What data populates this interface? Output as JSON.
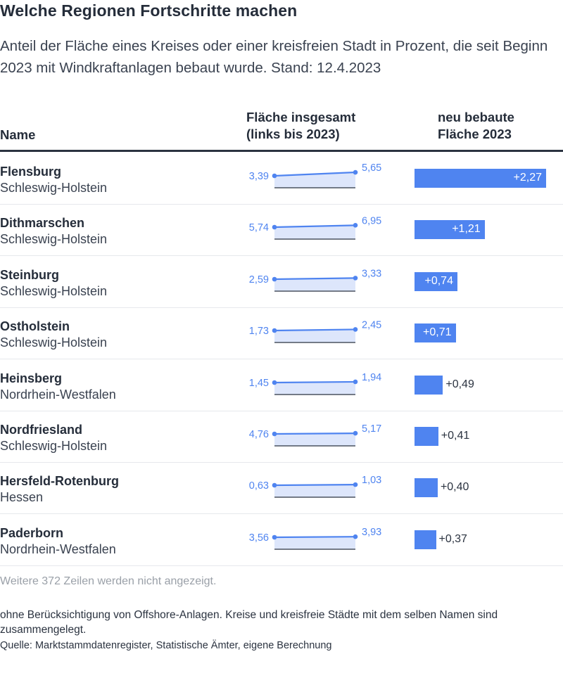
{
  "header": {
    "title": "Welche Regionen Fortschritte machen",
    "subtitle": "Anteil der Fläche eines Kreises oder einer kreisfreien Stadt in Prozent, die seit Beginn 2023 mit Windkraftanlagen bebaut wurde. Stand: 12.4.2023"
  },
  "columns": {
    "name": "Name",
    "total_line1": "Fläche insgesamt",
    "total_line2": "(links bis 2023)",
    "new_line1": "neu bebaute",
    "new_line2": "Fläche 2023"
  },
  "chart_data": {
    "type": "table",
    "columns": [
      "Name",
      "Fläche insgesamt (links bis 2023)",
      "neu bebaute Fläche 2023"
    ],
    "rows": [
      {
        "name": "Flensburg",
        "state": "Schleswig-Holstein",
        "before": 3.39,
        "after": 5.65,
        "new": 2.27,
        "before_label": "3,39",
        "after_label": "5,65",
        "new_label": "+2,27"
      },
      {
        "name": "Dithmarschen",
        "state": "Schleswig-Holstein",
        "before": 5.74,
        "after": 6.95,
        "new": 1.21,
        "before_label": "5,74",
        "after_label": "6,95",
        "new_label": "+1,21"
      },
      {
        "name": "Steinburg",
        "state": "Schleswig-Holstein",
        "before": 2.59,
        "after": 3.33,
        "new": 0.74,
        "before_label": "2,59",
        "after_label": "3,33",
        "new_label": "+0,74"
      },
      {
        "name": "Ostholstein",
        "state": "Schleswig-Holstein",
        "before": 1.73,
        "after": 2.45,
        "new": 0.71,
        "before_label": "1,73",
        "after_label": "2,45",
        "new_label": "+0,71"
      },
      {
        "name": "Heinsberg",
        "state": "Nordrhein-Westfalen",
        "before": 1.45,
        "after": 1.94,
        "new": 0.49,
        "before_label": "1,45",
        "after_label": "1,94",
        "new_label": "+0,49"
      },
      {
        "name": "Nordfriesland",
        "state": "Schleswig-Holstein",
        "before": 4.76,
        "after": 5.17,
        "new": 0.41,
        "before_label": "4,76",
        "after_label": "5,17",
        "new_label": "+0,41"
      },
      {
        "name": "Hersfeld-Rotenburg",
        "state": "Hessen",
        "before": 0.63,
        "after": 1.03,
        "new": 0.4,
        "before_label": "0,63",
        "after_label": "1,03",
        "new_label": "+0,40"
      },
      {
        "name": "Paderborn",
        "state": "Nordrhein-Westfalen",
        "before": 3.56,
        "after": 3.93,
        "new": 0.37,
        "before_label": "3,56",
        "after_label": "3,93",
        "new_label": "+0,37"
      }
    ],
    "colors": {
      "accent": "#4f84f0",
      "area": "#dde6fb",
      "label": "#4f84f0"
    }
  },
  "footer": {
    "more": "Weitere 372 Zeilen werden nicht angezeigt.",
    "note": "ohne Berücksichtigung von Offshore-Anlagen. Kreise und kreisfreie Städte mit dem selben Namen sind zusammengelegt.",
    "source": "Quelle: Marktstammdatenregister, Statistische Ämter, eigene Berechnung"
  }
}
